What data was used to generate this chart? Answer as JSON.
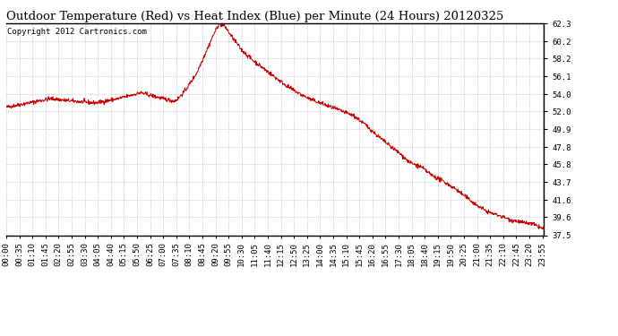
{
  "title": "Outdoor Temperature (Red) vs Heat Index (Blue) per Minute (24 Hours) 20120325",
  "copyright_text": "Copyright 2012 Cartronics.com",
  "y_min": 37.5,
  "y_max": 62.3,
  "y_ticks": [
    37.5,
    39.6,
    41.6,
    43.7,
    45.8,
    47.8,
    49.9,
    52.0,
    54.0,
    56.1,
    58.2,
    60.2,
    62.3
  ],
  "line_color": "#cc0000",
  "background_color": "#ffffff",
  "grid_color": "#aaaaaa",
  "title_fontsize": 9.5,
  "copyright_fontsize": 6.5,
  "tick_fontsize": 6.5,
  "x_tick_interval": 35,
  "keypoints_m": [
    0,
    60,
    120,
    180,
    240,
    300,
    360,
    420,
    450,
    460,
    480,
    510,
    540,
    555,
    570,
    585,
    600,
    630,
    660,
    690,
    720,
    750,
    780,
    810,
    840,
    870,
    900,
    930,
    960,
    990,
    1020,
    1050,
    1080,
    1110,
    1140,
    1170,
    1200,
    1230,
    1260,
    1290,
    1320,
    1350,
    1380,
    1410,
    1439
  ],
  "keypoints_t": [
    52.5,
    53.0,
    53.5,
    53.2,
    53.0,
    53.5,
    54.2,
    53.5,
    53.2,
    53.5,
    54.5,
    56.5,
    59.5,
    61.0,
    62.3,
    62.0,
    61.0,
    59.2,
    58.0,
    57.0,
    56.0,
    55.0,
    54.2,
    53.5,
    53.0,
    52.5,
    52.0,
    51.5,
    50.5,
    49.3,
    48.2,
    47.2,
    46.0,
    45.5,
    44.5,
    43.8,
    43.0,
    42.0,
    41.0,
    40.2,
    39.8,
    39.3,
    39.0,
    38.8,
    38.2
  ],
  "noise_seed": 42,
  "noise_std": 0.12
}
